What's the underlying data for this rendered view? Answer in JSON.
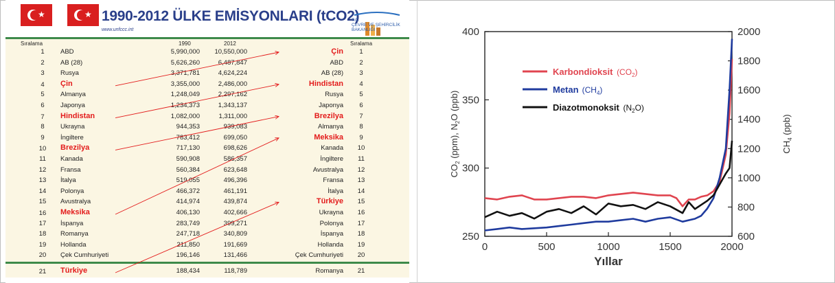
{
  "slide": {
    "title": "1990-2012 ÜLKE EMİSYONLARI (tCO2)",
    "url": "www.unfccc.int",
    "logo_text": [
      "T.C.",
      "ÇEVRE VE ŞEHİRCİLİK",
      "BAKANLIĞI"
    ],
    "headers": {
      "rank_left": "Sıralama",
      "year1": "1990",
      "year2": "2012",
      "rank_right": "Sıralama"
    },
    "rows": [
      {
        "rank": "1",
        "country": "ABD",
        "v1990": "5,990,000",
        "v2012": "10,550,000",
        "country2012": "Çin",
        "rank2": "1",
        "hl_left": false,
        "hl_right": true
      },
      {
        "rank": "2",
        "country": "AB (28)",
        "v1990": "5,626,260",
        "v2012": "6,487,847",
        "country2012": "ABD",
        "rank2": "2",
        "hl_left": false,
        "hl_right": false
      },
      {
        "rank": "3",
        "country": "Rusya",
        "v1990": "3,371,781",
        "v2012": "4,624,224",
        "country2012": "AB (28)",
        "rank2": "3",
        "hl_left": false,
        "hl_right": false
      },
      {
        "rank": "4",
        "country": "Çin",
        "v1990": "3,355,000",
        "v2012": "2,486,000",
        "country2012": "Hindistan",
        "rank2": "4",
        "hl_left": true,
        "hl_right": true
      },
      {
        "rank": "5",
        "country": "Almanya",
        "v1990": "1,248,049",
        "v2012": "2,297,162",
        "country2012": "Rusya",
        "rank2": "5",
        "hl_left": false,
        "hl_right": false
      },
      {
        "rank": "6",
        "country": "Japonya",
        "v1990": "1,234,373",
        "v2012": "1,343,137",
        "country2012": "Japonya",
        "rank2": "6",
        "hl_left": false,
        "hl_right": false
      },
      {
        "rank": "7",
        "country": "Hindistan",
        "v1990": "1,082,000",
        "v2012": "1,311,000",
        "country2012": "Brezilya",
        "rank2": "7",
        "hl_left": true,
        "hl_right": true
      },
      {
        "rank": "8",
        "country": "Ukrayna",
        "v1990": "944,353",
        "v2012": "939,083",
        "country2012": "Almanya",
        "rank2": "8",
        "hl_left": false,
        "hl_right": false
      },
      {
        "rank": "9",
        "country": "İngiltere",
        "v1990": "783,412",
        "v2012": "699,050",
        "country2012": "Meksika",
        "rank2": "9",
        "hl_left": false,
        "hl_right": true
      },
      {
        "rank": "10",
        "country": "Brezilya",
        "v1990": "717,130",
        "v2012": "698,626",
        "country2012": "Kanada",
        "rank2": "10",
        "hl_left": true,
        "hl_right": false
      },
      {
        "rank": "11",
        "country": "Kanada",
        "v1990": "590,908",
        "v2012": "586,357",
        "country2012": "İngiltere",
        "rank2": "11",
        "hl_left": false,
        "hl_right": false
      },
      {
        "rank": "12",
        "country": "Fransa",
        "v1990": "560,384",
        "v2012": "623,648",
        "country2012": "Avustralya",
        "rank2": "12",
        "hl_left": false,
        "hl_right": false
      },
      {
        "rank": "13",
        "country": "İtalya",
        "v1990": "519,055",
        "v2012": "496,396",
        "country2012": "Fransa",
        "rank2": "13",
        "hl_left": false,
        "hl_right": false
      },
      {
        "rank": "14",
        "country": "Polonya",
        "v1990": "466,372",
        "v2012": "461,191",
        "country2012": "İtalya",
        "rank2": "14",
        "hl_left": false,
        "hl_right": false
      },
      {
        "rank": "15",
        "country": "Avustralya",
        "v1990": "414,974",
        "v2012": "439,874",
        "country2012": "Türkiye",
        "rank2": "15",
        "hl_left": false,
        "hl_right": true
      },
      {
        "rank": "16",
        "country": "Meksika",
        "v1990": "406,130",
        "v2012": "402,666",
        "country2012": "Ukrayna",
        "rank2": "16",
        "hl_left": true,
        "hl_right": false
      },
      {
        "rank": "17",
        "country": "İspanya",
        "v1990": "283,749",
        "v2012": "399,271",
        "country2012": "Polonya",
        "rank2": "17",
        "hl_left": false,
        "hl_right": false
      },
      {
        "rank": "18",
        "country": "Romanya",
        "v1990": "247,718",
        "v2012": "340,809",
        "country2012": "İspanya",
        "rank2": "18",
        "hl_left": false,
        "hl_right": false
      },
      {
        "rank": "19",
        "country": "Hollanda",
        "v1990": "211,850",
        "v2012": "191,669",
        "country2012": "Hollanda",
        "rank2": "19",
        "hl_left": false,
        "hl_right": false
      },
      {
        "rank": "20",
        "country": "Çek Cumhuriyeti",
        "v1990": "196,146",
        "v2012": "131,466",
        "country2012": "Çek Cumhuriyeti",
        "rank2": "20",
        "hl_left": false,
        "hl_right": false
      },
      {
        "rank": "21",
        "country": "Türkiye",
        "v1990": "188,434",
        "v2012": "118,789",
        "country2012": "Romanya",
        "rank2": "21",
        "hl_left": true,
        "hl_right": false
      }
    ],
    "arrows": [
      {
        "from_rank": 4,
        "to_rank": 1
      },
      {
        "from_rank": 7,
        "to_rank": 4
      },
      {
        "from_rank": 10,
        "to_rank": 7
      },
      {
        "from_rank": 16,
        "to_rank": 9
      },
      {
        "from_rank": 21,
        "to_rank": 15
      }
    ],
    "colors": {
      "title": "#2a3f8a",
      "highlight": "#e31b1b",
      "flag": "#d91f1f",
      "stripe": "#3d8a4a",
      "table_bg": "#fbf6e3",
      "logo": "#e08a2a"
    }
  },
  "chart_data": {
    "type": "line",
    "xlabel": "Yıllar",
    "ylabel_left": [
      "CO",
      "2",
      " (ppm), N",
      "2",
      "O (ppb)"
    ],
    "ylabel_right": [
      "CH",
      "4",
      " (ppb)"
    ],
    "xlim": [
      0,
      2000
    ],
    "ylim_left": [
      250,
      400
    ],
    "ylim_right": [
      600,
      2000
    ],
    "xticks": [
      "0",
      "500",
      "1000",
      "1500",
      "2000"
    ],
    "yticks_left": [
      "250",
      "300",
      "350",
      "400"
    ],
    "yticks_right": [
      "600",
      "800",
      "1000",
      "1200",
      "1400",
      "1600",
      "1800",
      "2000"
    ],
    "legend_position": "top-left",
    "series": [
      {
        "name": "Karbondioksit",
        "legend_suffix": [
          "(CO",
          "2",
          ")"
        ],
        "axis": "left",
        "color": "#e0444f",
        "x": [
          0,
          100,
          200,
          300,
          400,
          500,
          600,
          700,
          800,
          900,
          1000,
          1100,
          1200,
          1300,
          1400,
          1500,
          1550,
          1600,
          1650,
          1700,
          1750,
          1800,
          1850,
          1900,
          1950,
          1980,
          2000
        ],
        "y": [
          278,
          277,
          279,
          280,
          277,
          277,
          278,
          279,
          279,
          278,
          280,
          281,
          282,
          281,
          280,
          280,
          278,
          272,
          277,
          277,
          279,
          280,
          283,
          290,
          310,
          340,
          380
        ]
      },
      {
        "name": "Metan",
        "legend_suffix": [
          "(CH",
          "4",
          ")"
        ],
        "axis": "right",
        "color": "#1f3b9e",
        "x": [
          0,
          100,
          200,
          300,
          400,
          500,
          600,
          700,
          800,
          900,
          1000,
          1100,
          1200,
          1300,
          1400,
          1500,
          1600,
          1700,
          1750,
          1800,
          1850,
          1900,
          1950,
          1980,
          2000
        ],
        "y": [
          640,
          650,
          660,
          650,
          655,
          660,
          670,
          680,
          690,
          700,
          700,
          710,
          720,
          700,
          720,
          730,
          700,
          720,
          740,
          790,
          860,
          1000,
          1200,
          1600,
          1950
        ]
      },
      {
        "name": "Diazotmonoksit",
        "legend_suffix": [
          "(N",
          "2",
          "O)"
        ],
        "axis": "left",
        "color": "#111111",
        "x": [
          0,
          100,
          200,
          300,
          400,
          500,
          600,
          700,
          800,
          900,
          1000,
          1100,
          1200,
          1300,
          1400,
          1500,
          1600,
          1650,
          1700,
          1750,
          1800,
          1850,
          1900,
          1950,
          1980,
          2000
        ],
        "y": [
          264,
          268,
          265,
          267,
          263,
          268,
          270,
          267,
          272,
          266,
          274,
          272,
          273,
          270,
          275,
          272,
          267,
          275,
          270,
          273,
          276,
          280,
          288,
          296,
          300,
          320
        ]
      }
    ]
  }
}
